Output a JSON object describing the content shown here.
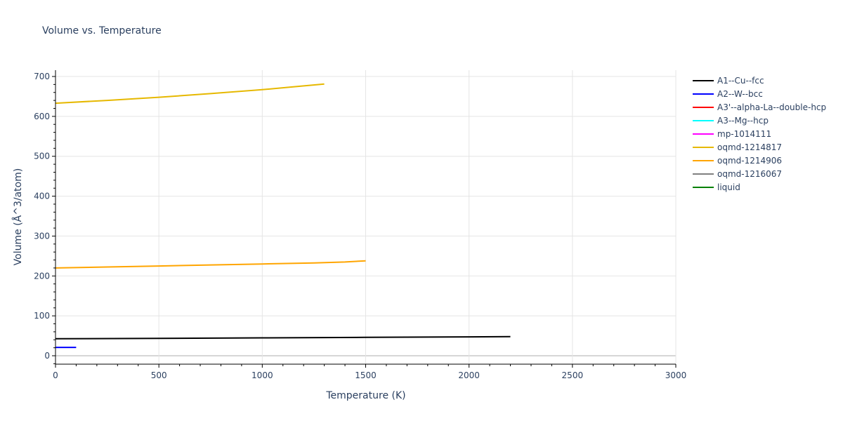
{
  "title": "Volume vs. Temperature",
  "chart_data": {
    "type": "line",
    "title": "Volume vs. Temperature",
    "xlabel": "Temperature (K)",
    "ylabel": "Volume (Å^3/atom)",
    "xlim": [
      0,
      3000
    ],
    "ylim": [
      -22,
      718
    ],
    "xticks": [
      0,
      500,
      1000,
      1500,
      2000,
      2500,
      3000
    ],
    "yticks": [
      0,
      100,
      200,
      300,
      400,
      500,
      600,
      700
    ],
    "grid": true,
    "legend_position": "right",
    "series": [
      {
        "name": "A1--Cu--fcc",
        "color": "#000000",
        "x": [
          0,
          500,
          1000,
          1500,
          2000,
          2200
        ],
        "y": [
          42.5,
          43.5,
          44.8,
          46.0,
          47.3,
          48.0
        ]
      },
      {
        "name": "A2--W--bcc",
        "color": "#0000ff",
        "x": [
          0,
          100
        ],
        "y": [
          21,
          21
        ]
      },
      {
        "name": "A3'--alpha-La--double-hcp",
        "color": "#ff0000",
        "x": [],
        "y": []
      },
      {
        "name": "A3--Mg--hcp",
        "color": "#00ffff",
        "x": [],
        "y": []
      },
      {
        "name": "mp-1014111",
        "color": "#ff00ff",
        "x": [],
        "y": []
      },
      {
        "name": "oqmd-1214817",
        "color": "#e6b800",
        "x": [
          0,
          250,
          500,
          750,
          1000,
          1150,
          1300
        ],
        "y": [
          633,
          640,
          648,
          657,
          667,
          674,
          681
        ]
      },
      {
        "name": "oqmd-1214906",
        "color": "#ffa500",
        "x": [
          0,
          250,
          500,
          750,
          1000,
          1250,
          1400,
          1500
        ],
        "y": [
          220,
          222.5,
          225,
          227.5,
          230,
          232.5,
          235,
          238
        ]
      },
      {
        "name": "oqmd-1216067",
        "color": "#808080",
        "x": [],
        "y": []
      },
      {
        "name": "liquid",
        "color": "#008000",
        "x": [],
        "y": []
      }
    ]
  },
  "legend": [
    {
      "label": "A1--Cu--fcc",
      "color": "#000000"
    },
    {
      "label": "A2--W--bcc",
      "color": "#0000ff"
    },
    {
      "label": "A3'--alpha-La--double-hcp",
      "color": "#ff0000"
    },
    {
      "label": "A3--Mg--hcp",
      "color": "#00ffff"
    },
    {
      "label": "mp-1014111",
      "color": "#ff00ff"
    },
    {
      "label": "oqmd-1214817",
      "color": "#e6b800"
    },
    {
      "label": "oqmd-1214906",
      "color": "#ffa500"
    },
    {
      "label": "oqmd-1216067",
      "color": "#808080"
    },
    {
      "label": "liquid",
      "color": "#008000"
    }
  ]
}
